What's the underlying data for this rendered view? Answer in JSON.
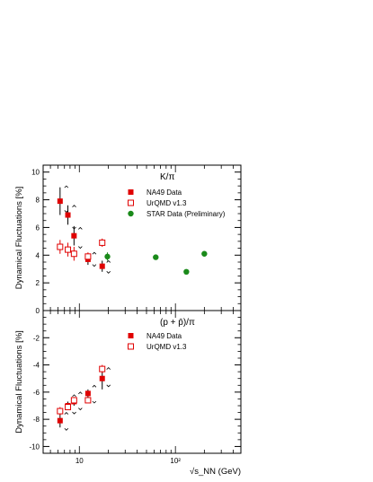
{
  "chart_data": [
    {
      "type": "scatter",
      "title": "K/π",
      "ylabel": "Dynamical Fluctuations [%]",
      "xlabel": "",
      "xscale": "log",
      "xlim": [
        4.2,
        480
      ],
      "ylim": [
        0,
        10.5
      ],
      "yticks": [
        0,
        2,
        4,
        6,
        8,
        10
      ],
      "yticklabels": [
        "0",
        "2",
        "4",
        "6",
        "8",
        "10"
      ],
      "grid": false,
      "legend_position": "top-right",
      "series": [
        {
          "name": "NA49 Data",
          "color": "#e00000",
          "marker": "filled-square",
          "points": [
            {
              "x": 6.3,
              "y": 7.9,
              "err": 1.0,
              "sys_lo": 7.1,
              "sys_hi": 9.0
            },
            {
              "x": 7.6,
              "y": 6.9,
              "err": 0.7,
              "sys_lo": 5.9,
              "sys_hi": 7.6
            },
            {
              "x": 8.8,
              "y": 5.4,
              "err": 0.7,
              "sys_lo": 4.5,
              "sys_hi": 6.0
            },
            {
              "x": 12.3,
              "y": 3.7,
              "err": 0.4,
              "sys_lo": 3.2,
              "sys_hi": 4.2
            },
            {
              "x": 17.3,
              "y": 3.2,
              "err": 0.4,
              "sys_lo": 2.7,
              "sys_hi": 3.6
            }
          ]
        },
        {
          "name": "UrQMD v1.3",
          "color": "#e00000",
          "marker": "open-square",
          "points": [
            {
              "x": 6.3,
              "y": 4.6,
              "err": 0.5
            },
            {
              "x": 7.6,
              "y": 4.4,
              "err": 0.5
            },
            {
              "x": 8.8,
              "y": 4.1,
              "err": 0.5
            },
            {
              "x": 12.3,
              "y": 3.9,
              "err": 0.3
            },
            {
              "x": 17.3,
              "y": 4.9,
              "err": 0.3
            }
          ]
        },
        {
          "name": "STAR Data (Preliminary)",
          "color": "#1a8a1a",
          "marker": "filled-circle",
          "points": [
            {
              "x": 19.6,
              "y": 3.9,
              "err": 0.3
            },
            {
              "x": 62.4,
              "y": 3.85,
              "err": 0.1
            },
            {
              "x": 130,
              "y": 2.8,
              "err": 0.1
            },
            {
              "x": 200,
              "y": 4.1,
              "err": 0.1
            }
          ]
        }
      ]
    },
    {
      "type": "scatter",
      "title": "(p + p̄)/π",
      "ylabel": "Dynamical Fluctuations [%]",
      "xlabel": "√s_NN (GeV)",
      "xscale": "log",
      "xlim": [
        4.2,
        480
      ],
      "ylim": [
        -10.5,
        0
      ],
      "yticks": [
        -10,
        -8,
        -6,
        -4,
        -2
      ],
      "yticklabels": [
        "-10",
        "-8",
        "-6",
        "-4",
        "-2"
      ],
      "xticks": [
        10,
        100
      ],
      "xticklabels": [
        "10",
        "10²"
      ],
      "grid": false,
      "legend_position": "top-right",
      "series": [
        {
          "name": "NA49 Data",
          "color": "#e00000",
          "marker": "filled-square",
          "points": [
            {
              "x": 6.3,
              "y": -8.1,
              "err": 0.5,
              "sys_lo": -8.8,
              "sys_hi": -7.5
            },
            {
              "x": 7.6,
              "y": -7.0,
              "err": 0.3,
              "sys_lo": -7.6,
              "sys_hi": -6.2
            },
            {
              "x": 8.8,
              "y": -6.7,
              "err": 0.3,
              "sys_lo": -7.3,
              "sys_hi": -6.0
            },
            {
              "x": 12.3,
              "y": -6.1,
              "err": 0.3,
              "sys_lo": -6.8,
              "sys_hi": -5.5
            },
            {
              "x": 17.3,
              "y": -5.0,
              "err": 0.8,
              "sys_lo": -5.6,
              "sys_hi": -4.2
            }
          ]
        },
        {
          "name": "UrQMD v1.3",
          "color": "#e00000",
          "marker": "open-square",
          "points": [
            {
              "x": 6.3,
              "y": -7.4,
              "err": 0.3
            },
            {
              "x": 7.6,
              "y": -7.1,
              "err": 0.2
            },
            {
              "x": 8.8,
              "y": -6.6,
              "err": 0.2
            },
            {
              "x": 12.3,
              "y": -6.6,
              "err": 0.2
            },
            {
              "x": 17.3,
              "y": -4.3,
              "err": 0.3
            }
          ]
        }
      ]
    }
  ]
}
